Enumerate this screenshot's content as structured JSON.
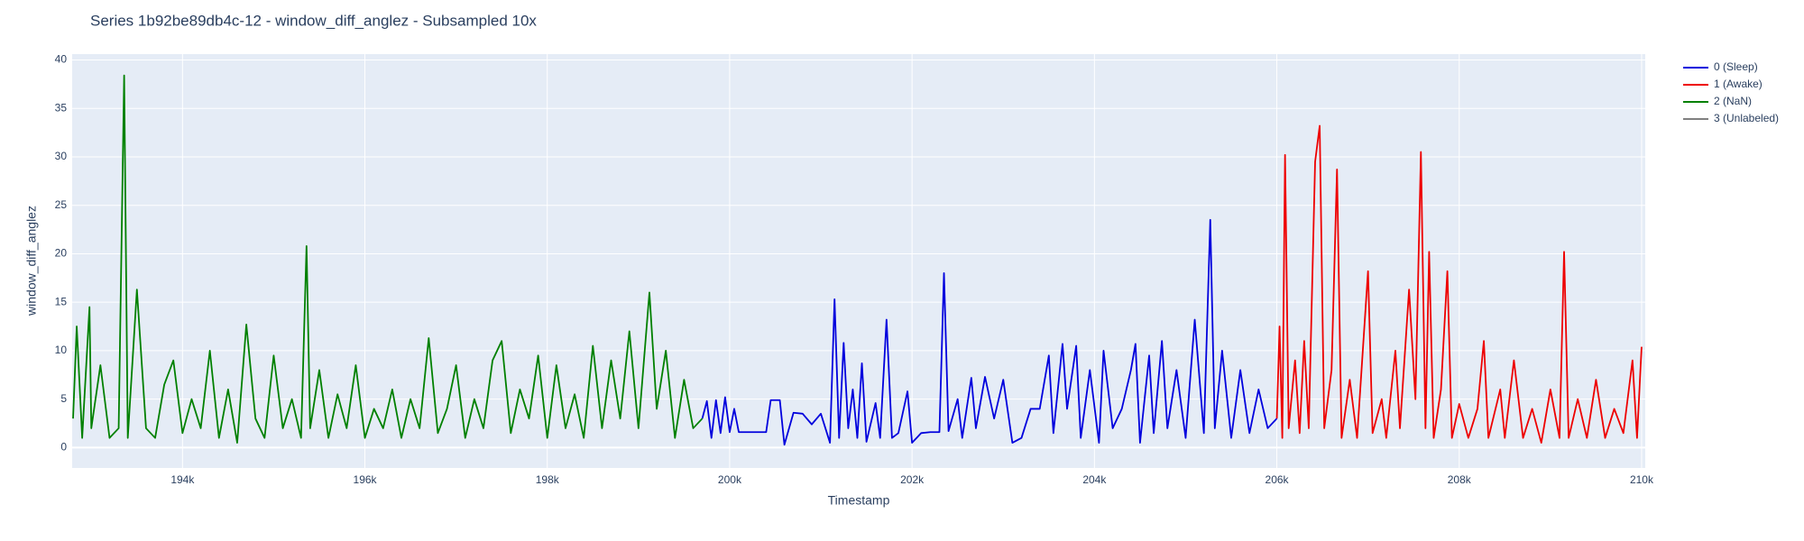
{
  "chart_data": {
    "type": "line",
    "title": "Series 1b92be89db4c-12 - window_diff_anglez - Subsampled 10x",
    "x_label": "Timestamp",
    "y_label": "window_diff_anglez",
    "xlim": [
      192790,
      210040
    ],
    "ylim": [
      -2.1,
      40.6
    ],
    "xticks": [
      {
        "value": 194000,
        "label": "194k"
      },
      {
        "value": 196000,
        "label": "196k"
      },
      {
        "value": 198000,
        "label": "198k"
      },
      {
        "value": 200000,
        "label": "200k"
      },
      {
        "value": 202000,
        "label": "202k"
      },
      {
        "value": 204000,
        "label": "204k"
      },
      {
        "value": 206000,
        "label": "206k"
      },
      {
        "value": 208000,
        "label": "208k"
      },
      {
        "value": 210000,
        "label": "210k"
      }
    ],
    "yticks": [
      0,
      5,
      10,
      15,
      20,
      25,
      30,
      35,
      40
    ],
    "grid": true,
    "legend": "right",
    "series": [
      {
        "name": "0 (Sleep)",
        "color": "#0000dd",
        "x": [
          199700,
          199750,
          199800,
          199850,
          199900,
          199950,
          200000,
          200050,
          200100,
          200400,
          200450,
          200550,
          200600,
          200700,
          200800,
          200900,
          201000,
          201100,
          201150,
          201200,
          201250,
          201300,
          201350,
          201400,
          201450,
          201500,
          201600,
          201650,
          201720,
          201780,
          201850,
          201950,
          202000,
          202100,
          202200,
          202300,
          202350,
          202400,
          202500,
          202550,
          202650,
          202700,
          202800,
          202900,
          203000,
          203100,
          203200,
          203300,
          203400,
          203500,
          203550,
          203650,
          203700,
          203800,
          203850,
          203950,
          204050,
          204100,
          204200,
          204300,
          204400,
          204450,
          204500,
          204600,
          204650,
          204740,
          204800,
          204900,
          205000,
          205100,
          205200,
          205270,
          205320,
          205400,
          205500,
          205600,
          205700,
          205800,
          205900,
          206000
        ],
        "values": [
          3,
          4.8,
          1,
          4.9,
          1.5,
          5.2,
          1.6,
          4,
          1.6,
          1.6,
          4.9,
          4.9,
          0.3,
          3.6,
          3.5,
          2.4,
          3.5,
          0.5,
          15.3,
          1,
          10.8,
          2,
          6,
          1,
          8.7,
          0.6,
          4.6,
          1,
          13.2,
          1,
          1.5,
          5.8,
          0.5,
          1.5,
          1.6,
          1.6,
          18,
          1.7,
          5,
          1,
          7.2,
          2,
          7.3,
          3,
          7,
          0.5,
          1,
          4,
          4,
          9.5,
          1.5,
          10.7,
          4,
          10.5,
          1,
          8,
          0.5,
          10,
          2,
          4,
          8,
          10.7,
          0.5,
          9.5,
          1.5,
          11,
          2,
          8,
          1,
          13.2,
          1.5,
          23.5,
          2,
          10,
          1,
          8,
          1.5,
          6,
          2,
          3
        ]
      },
      {
        "name": "1 (Awake)",
        "color": "#ee0000",
        "x": [
          206000,
          206030,
          206060,
          206090,
          206130,
          206200,
          206250,
          206300,
          206350,
          206420,
          206470,
          206520,
          206600,
          206660,
          206710,
          206800,
          206880,
          207000,
          207050,
          207150,
          207200,
          207300,
          207350,
          207450,
          207520,
          207580,
          207630,
          207670,
          207720,
          207800,
          207870,
          207920,
          208000,
          208100,
          208200,
          208270,
          208320,
          208450,
          208500,
          208600,
          208700,
          208800,
          208900,
          209000,
          209100,
          209150,
          209200,
          209300,
          209400,
          209500,
          209600,
          209700,
          209800,
          209900,
          209950,
          210000
        ],
        "values": [
          3,
          12.5,
          1,
          30.2,
          2,
          9,
          1.5,
          11,
          2,
          29.5,
          33.2,
          2,
          8,
          28.7,
          1,
          7,
          1,
          18.2,
          1.5,
          5,
          1,
          10,
          2,
          16.3,
          5,
          30.5,
          2,
          20.2,
          1,
          6,
          18.2,
          1,
          4.5,
          1,
          4,
          11,
          1,
          6,
          1,
          9,
          1,
          4,
          0.5,
          6,
          1,
          20.2,
          1,
          5,
          1,
          7,
          1,
          4,
          1.5,
          9,
          1,
          10.4
        ]
      },
      {
        "name": "2 (NaN)",
        "color": "#008000",
        "x": [
          192800,
          192840,
          192900,
          192980,
          193000,
          193100,
          193200,
          193300,
          193360,
          193400,
          193500,
          193600,
          193700,
          193800,
          193900,
          194000,
          194100,
          194200,
          194300,
          194400,
          194500,
          194600,
          194700,
          194800,
          194900,
          195000,
          195100,
          195200,
          195300,
          195360,
          195400,
          195500,
          195600,
          195700,
          195800,
          195900,
          196000,
          196100,
          196200,
          196300,
          196400,
          196500,
          196600,
          196700,
          196800,
          196900,
          197000,
          197100,
          197200,
          197300,
          197400,
          197500,
          197600,
          197700,
          197800,
          197900,
          198000,
          198100,
          198200,
          198300,
          198400,
          198500,
          198600,
          198700,
          198800,
          198900,
          199000,
          199120,
          199200,
          199300,
          199400,
          199500,
          199600,
          199700
        ],
        "values": [
          3,
          12.5,
          1,
          14.5,
          2,
          8.5,
          1,
          2,
          38.4,
          1,
          16.3,
          2,
          1,
          6.5,
          9,
          1.5,
          5,
          2,
          10,
          1,
          6,
          0.5,
          12.7,
          3,
          1,
          9.5,
          2,
          5,
          1,
          20.8,
          2,
          8,
          1,
          5.5,
          2,
          8.5,
          1,
          4,
          2,
          6,
          1,
          5,
          2,
          11.3,
          1.5,
          4,
          8.5,
          1,
          5,
          2,
          9,
          11,
          1.5,
          6,
          3,
          9.5,
          1,
          8.5,
          2,
          5.5,
          1,
          10.5,
          2,
          9,
          3,
          12,
          2,
          16,
          4,
          10,
          1,
          7,
          2,
          3
        ]
      },
      {
        "name": "3 (Unlabeled)",
        "color": "#808080",
        "x": [],
        "values": []
      }
    ]
  }
}
